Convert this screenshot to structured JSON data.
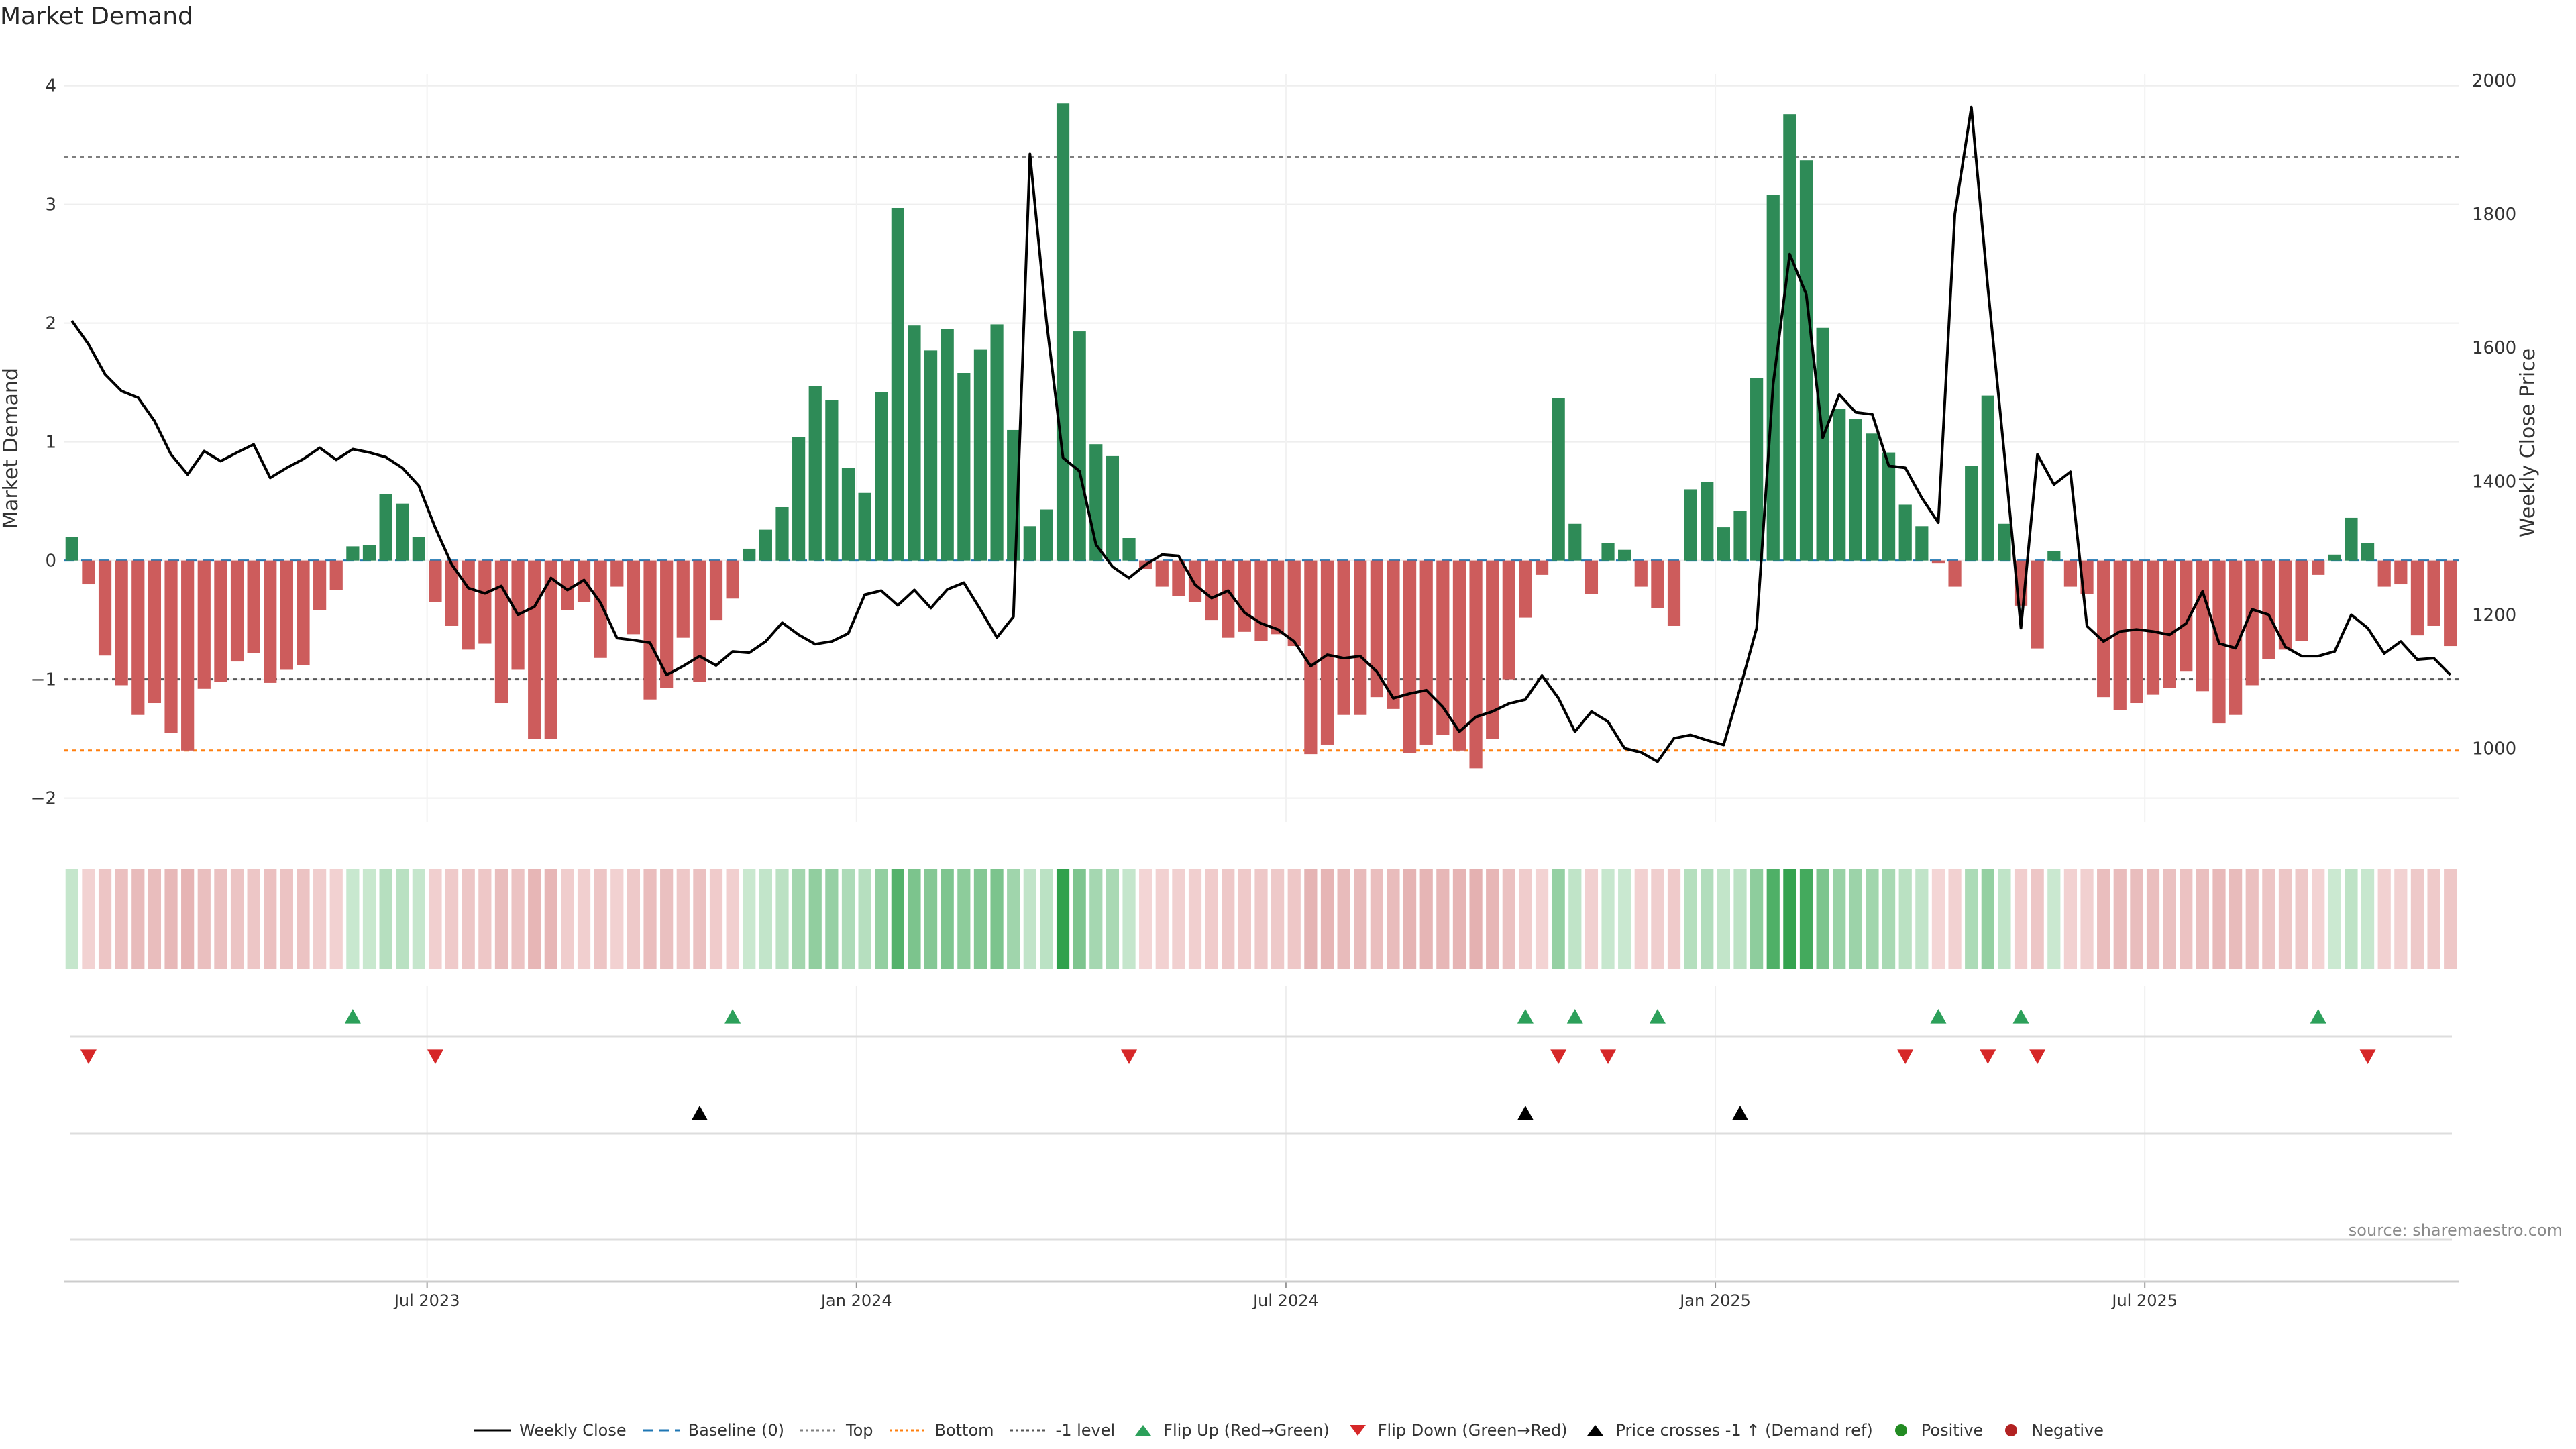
{
  "title": "Market Demand",
  "source": "source: sharemaestro.com",
  "colors": {
    "positive_bar": "#2e8b57",
    "negative_bar": "#cd5c5c",
    "price_line": "#000000",
    "baseline": "#1f77b4",
    "top": "#7f7f7f",
    "bottom": "#ff7f0e",
    "minus_one": "#555555",
    "flip_up": "#2ca05a",
    "flip_down": "#d62728",
    "cross": "#000000",
    "positive_dot": "#228b22",
    "negative_dot": "#b22222"
  },
  "legend": [
    {
      "key": "weekly_close",
      "label": "Weekly Close"
    },
    {
      "key": "baseline",
      "label": "Baseline (0)"
    },
    {
      "key": "top",
      "label": "Top"
    },
    {
      "key": "bottom",
      "label": "Bottom"
    },
    {
      "key": "minus_one",
      "label": "-1 level"
    },
    {
      "key": "flip_up",
      "label": "Flip Up (Red→Green)"
    },
    {
      "key": "flip_down",
      "label": "Flip Down (Green→Red)"
    },
    {
      "key": "cross",
      "label": "Price crosses -1 ↑ (Demand ref)"
    },
    {
      "key": "positive",
      "label": "Positive"
    },
    {
      "key": "negative",
      "label": "Negative"
    }
  ],
  "chart_data": {
    "type": "bar",
    "title": "Market Demand",
    "ylabel": "Market Demand",
    "ylabel_right": "Weekly Close Price",
    "ylim": [
      -2.2,
      4.1
    ],
    "ylim_right": [
      890,
      2010
    ],
    "yticks": [
      4,
      3,
      2,
      1,
      0,
      -1,
      -2
    ],
    "yticks_right": [
      2000,
      1800,
      1600,
      1400,
      1200,
      1000
    ],
    "yticks_labels": [
      "4",
      "3",
      "2",
      "1",
      "0",
      "−1",
      "−2"
    ],
    "yticks_right_labels": [
      "2000",
      "1800",
      "1600",
      "1400",
      "1200",
      "1000"
    ],
    "xtick_positions": [
      22,
      48,
      74,
      100,
      126
    ],
    "xtick_labels": [
      "Jul 2023",
      "Jan 2024",
      "Jul 2024",
      "Jan 2025",
      "Jul 2025"
    ],
    "reference_lines": {
      "baseline": 0,
      "top": 3.4,
      "bottom": -1.6,
      "minus_one": -1.0
    },
    "bars": [
      0.2,
      -0.2,
      -0.8,
      -1.05,
      -1.3,
      -1.2,
      -1.45,
      -1.6,
      -1.08,
      -1.02,
      -0.85,
      -0.78,
      -1.03,
      -0.92,
      -0.88,
      -0.42,
      -0.25,
      0.12,
      0.13,
      0.56,
      0.48,
      0.2,
      -0.35,
      -0.55,
      -0.75,
      -0.7,
      -1.2,
      -0.92,
      -1.5,
      -1.5,
      -0.42,
      -0.35,
      -0.82,
      -0.22,
      -0.62,
      -1.17,
      -1.07,
      -0.65,
      -1.02,
      -0.5,
      -0.32,
      0.1,
      0.26,
      0.45,
      1.04,
      1.47,
      1.35,
      0.78,
      0.57,
      1.42,
      2.97,
      1.98,
      1.77,
      1.95,
      1.58,
      1.78,
      1.99,
      1.1,
      0.29,
      0.43,
      3.85,
      1.93,
      0.98,
      0.88,
      0.19,
      -0.07,
      -0.22,
      -0.3,
      -0.35,
      -0.5,
      -0.65,
      -0.6,
      -0.68,
      -0.62,
      -0.72,
      -1.63,
      -1.55,
      -1.3,
      -1.3,
      -1.15,
      -1.25,
      -1.62,
      -1.55,
      -1.47,
      -1.6,
      -1.75,
      -1.5,
      -1.0,
      -0.48,
      -0.12,
      1.37,
      0.31,
      -0.28,
      0.15,
      0.09,
      -0.22,
      -0.4,
      -0.55,
      0.6,
      0.66,
      0.28,
      0.42,
      1.54,
      3.08,
      3.76,
      3.37,
      1.96,
      1.28,
      1.19,
      1.07,
      0.91,
      0.47,
      0.29,
      -0.02,
      -0.22,
      0.8,
      1.39,
      0.31,
      -0.38,
      -0.74,
      0.08,
      -0.22,
      -0.28,
      -1.15,
      -1.26,
      -1.2,
      -1.13,
      -1.07,
      -0.93,
      -1.1,
      -1.37,
      -1.3,
      -1.05,
      -0.83,
      -0.75,
      -0.68,
      -0.12,
      0.05,
      0.36,
      0.15,
      -0.22,
      -0.2,
      -0.63,
      -0.55,
      -0.72
    ],
    "price": [
      1640,
      1605,
      1560,
      1535,
      1525,
      1490,
      1440,
      1410,
      1445,
      1430,
      1443,
      1455,
      1405,
      1420,
      1433,
      1450,
      1432,
      1448,
      1443,
      1436,
      1420,
      1393,
      1330,
      1275,
      1240,
      1232,
      1243,
      1200,
      1212,
      1255,
      1237,
      1252,
      1218,
      1165,
      1162,
      1158,
      1110,
      1123,
      1138,
      1124,
      1145,
      1143,
      1160,
      1188,
      1170,
      1156,
      1160,
      1172,
      1230,
      1236,
      1214,
      1237,
      1210,
      1238,
      1248,
      1208,
      1166,
      1197,
      1890,
      1640,
      1435,
      1415,
      1305,
      1272,
      1255,
      1275,
      1290,
      1288,
      1245,
      1225,
      1236,
      1203,
      1187,
      1178,
      1160,
      1123,
      1140,
      1135,
      1138,
      1115,
      1075,
      1082,
      1087,
      1062,
      1025,
      1047,
      1055,
      1067,
      1073,
      1109,
      1075,
      1025,
      1055,
      1040,
      1000,
      994,
      980,
      1015,
      1020,
      1012,
      1005,
      1090,
      1180,
      1545,
      1740,
      1680,
      1465,
      1530,
      1503,
      1500,
      1423,
      1420,
      1375,
      1338,
      1800,
      1960,
      1690,
      1440,
      1180,
      1440,
      1395,
      1414,
      1183,
      1160,
      1175,
      1178,
      1175,
      1170,
      1187,
      1235,
      1157,
      1150,
      1208,
      1200,
      1152,
      1138,
      1138,
      1145,
      1200,
      1180,
      1142,
      1160,
      1133,
      1135,
      1110
    ],
    "flip_up": [
      17,
      40,
      88,
      91,
      96,
      113,
      118,
      136
    ],
    "flip_down": [
      1,
      22,
      64,
      90,
      93,
      111,
      116,
      119,
      139
    ],
    "price_cross": [
      38,
      88,
      101
    ],
    "strip": [
      0.2,
      -0.2,
      -0.8,
      -1.05,
      -1.3,
      -1.2,
      -1.45,
      -1.6,
      -1.08,
      -1.02,
      -0.85,
      -0.78,
      -1.03,
      -0.92,
      -0.88,
      -0.42,
      -0.25,
      0.12,
      0.13,
      0.56,
      0.48,
      0.2,
      -0.35,
      -0.55,
      -0.75,
      -0.7,
      -1.2,
      -0.92,
      -1.5,
      -1.5,
      -0.42,
      -0.35,
      -0.82,
      -0.22,
      -0.62,
      -1.17,
      -1.07,
      -0.65,
      -1.02,
      -0.5,
      -0.32,
      0.1,
      0.26,
      0.45,
      1.04,
      1.47,
      1.35,
      0.78,
      0.57,
      1.42,
      2.97,
      1.98,
      1.77,
      1.95,
      1.58,
      1.78,
      1.99,
      1.1,
      0.29,
      0.43,
      3.85,
      1.93,
      0.98,
      0.88,
      0.19,
      -0.07,
      -0.22,
      -0.3,
      -0.35,
      -0.5,
      -0.65,
      -0.6,
      -0.68,
      -0.62,
      -0.72,
      -1.63,
      -1.55,
      -1.3,
      -1.3,
      -1.15,
      -1.25,
      -1.62,
      -1.55,
      -1.47,
      -1.6,
      -1.75,
      -1.5,
      -1.0,
      -0.48,
      -0.12,
      1.37,
      0.31,
      -0.28,
      0.15,
      0.09,
      -0.22,
      -0.4,
      -0.55,
      0.6,
      0.66,
      0.28,
      0.42,
      1.54,
      3.08,
      3.76,
      3.37,
      1.96,
      1.28,
      1.19,
      1.07,
      0.91,
      0.47,
      0.29,
      -0.02,
      -0.22,
      0.8,
      1.39,
      0.31,
      -0.38,
      -0.74,
      0.08,
      -0.22,
      -0.28,
      -1.15,
      -1.26,
      -1.2,
      -1.13,
      -1.07,
      -0.93,
      -1.1,
      -1.37,
      -1.3,
      -1.05,
      -0.83,
      -0.75,
      -0.68,
      -0.12,
      0.05,
      0.36,
      0.15,
      -0.22,
      -0.2,
      -0.63,
      -0.55,
      -0.72
    ]
  }
}
